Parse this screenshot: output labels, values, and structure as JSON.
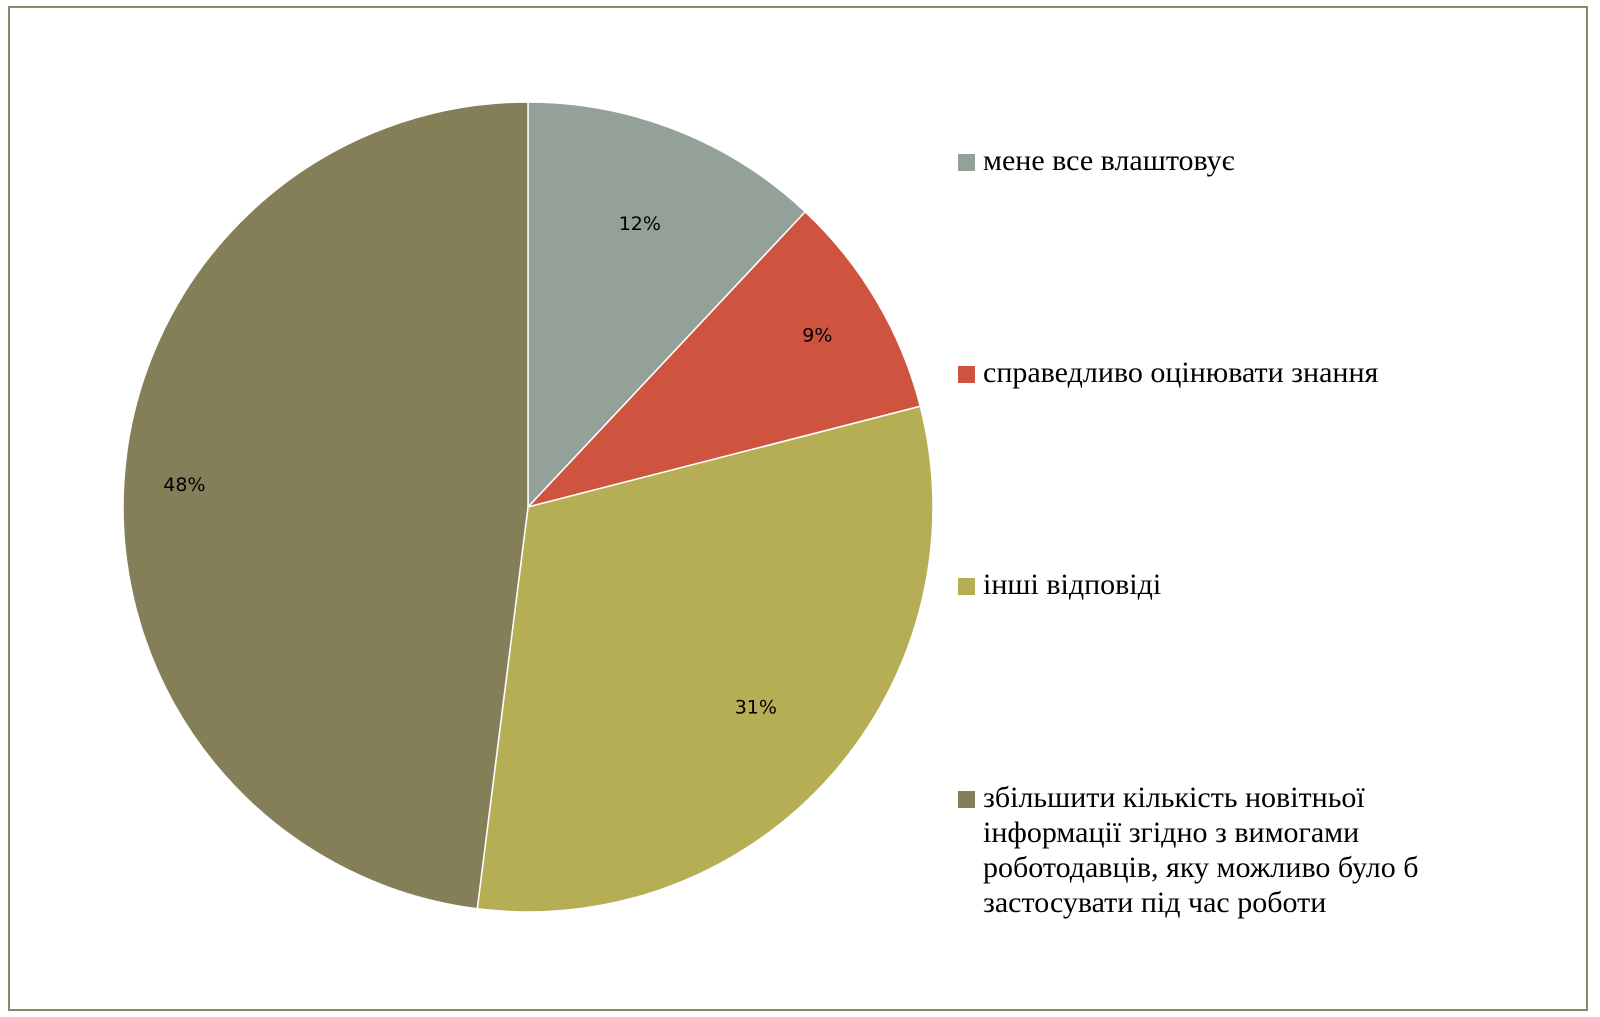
{
  "chart_data": {
    "type": "pie",
    "slices": [
      {
        "label": "мене все влаштовує",
        "value": 12,
        "display": "12%",
        "color": "#93a199"
      },
      {
        "label": "справедливо оцінювати знання",
        "value": 9,
        "display": "9%",
        "color": "#ce5440"
      },
      {
        "label": "інші відповіді",
        "value": 31,
        "display": "31%",
        "color": "#b5ae55"
      },
      {
        "label": "збільшити кількість новітньої інформації згідно з вимогами роботодавців, яку можливо було б застосувати під час роботи",
        "value": 48,
        "display": "48%",
        "color": "#847f58"
      }
    ],
    "legend_position": "right",
    "start_angle": "12 o'clock",
    "direction": "clockwise"
  }
}
